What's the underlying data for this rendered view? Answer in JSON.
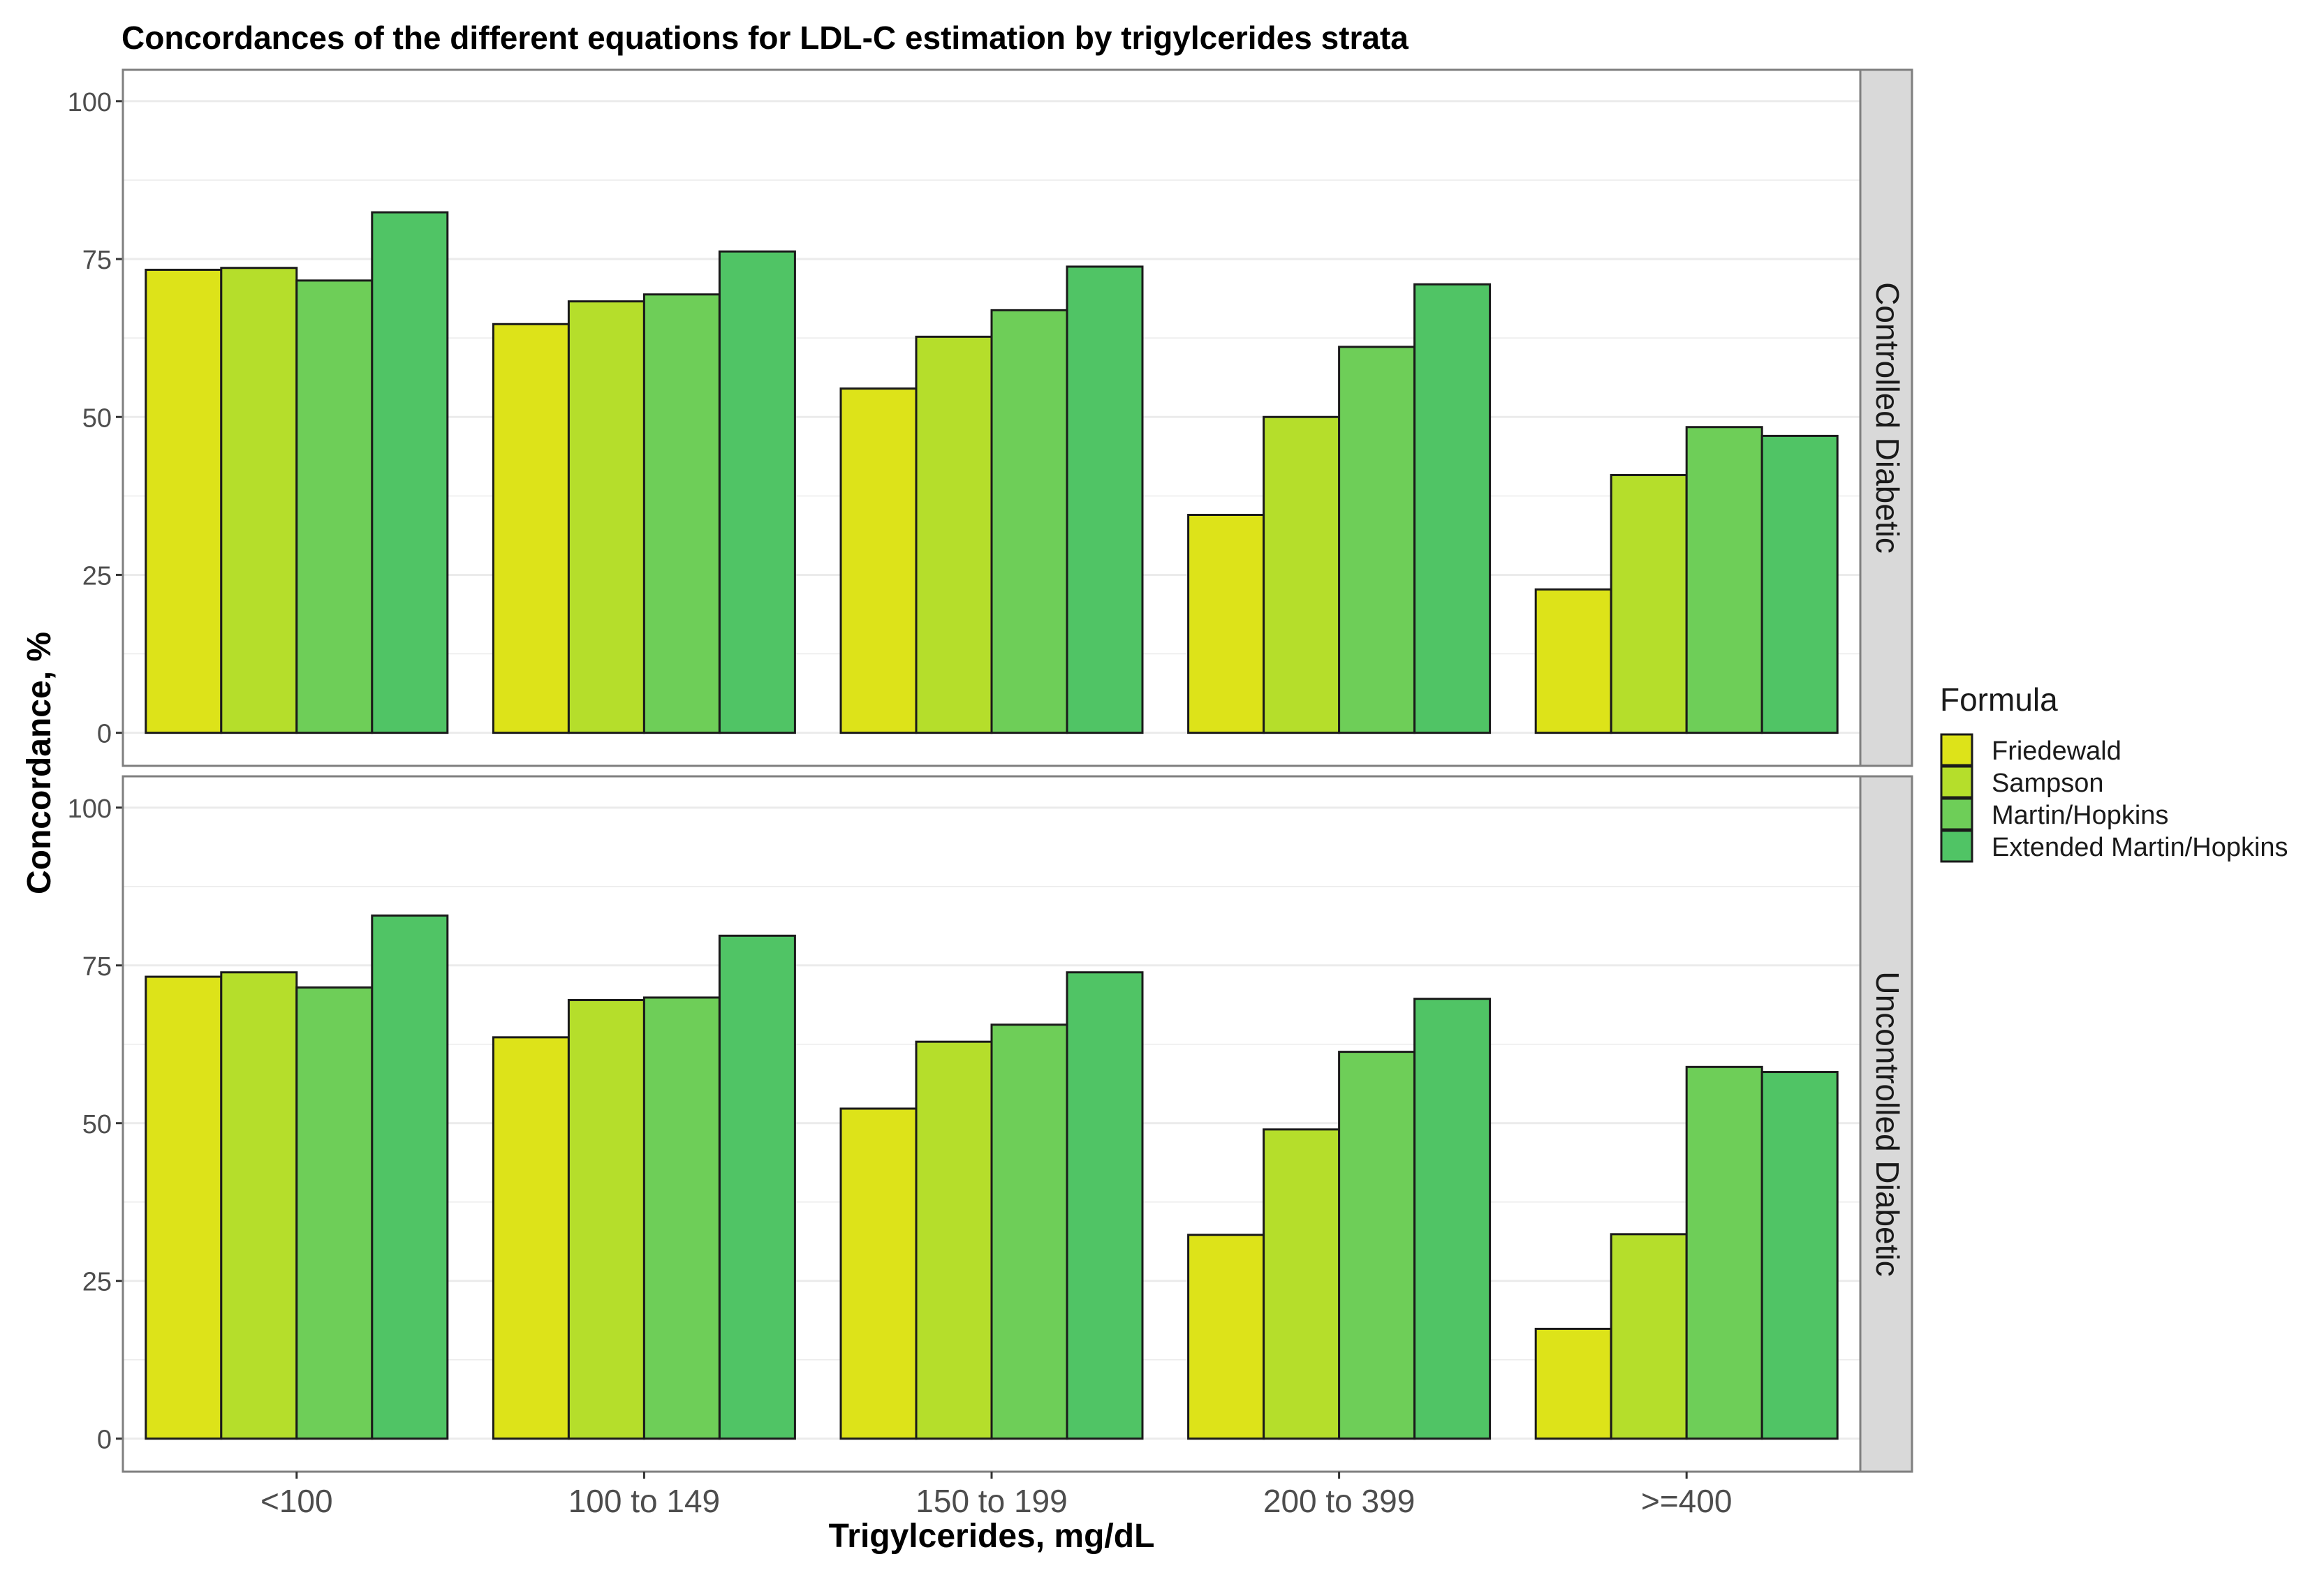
{
  "chart_data": {
    "type": "bar",
    "title": "Concordances of the different equations for LDL-C estimation by trigylcerides strata",
    "xlabel": "Trigylcerides, mg/dL",
    "ylabel": "Concordance, %",
    "ylim": [
      0,
      100
    ],
    "yticks": [
      "0",
      "25",
      "50",
      "75",
      "100"
    ],
    "categories": [
      "<100",
      "100 to 149",
      "150 to 199",
      "200 to 399",
      ">=400"
    ],
    "legend": {
      "title": "Formula",
      "position": "right",
      "entries": [
        "Friedewald",
        "Sampson",
        "Martin/Hopkins",
        "Extended Martin/Hopkins"
      ]
    },
    "colors": {
      "Friedewald": "#dde319",
      "Sampson": "#b5de2b",
      "Martin/Hopkins": "#6ece58",
      "Extended Martin/Hopkins": "#50c465",
      "strip_bg": "#d9d9d9",
      "grid": "#ebebeb",
      "panel_border": "#7f7f7f"
    },
    "panels": [
      {
        "label": "Controlled Diabetic",
        "series": [
          {
            "name": "Friedewald",
            "values": [
              73.3,
              64.7,
              54.5,
              34.5,
              22.7
            ]
          },
          {
            "name": "Sampson",
            "values": [
              73.6,
              68.3,
              62.7,
              50.0,
              40.8
            ]
          },
          {
            "name": "Martin/Hopkins",
            "values": [
              71.6,
              69.4,
              66.9,
              61.1,
              48.4
            ]
          },
          {
            "name": "Extended Martin/Hopkins",
            "values": [
              82.4,
              76.2,
              73.8,
              71.0,
              47.0
            ]
          }
        ]
      },
      {
        "label": "Uncontrolled Diabetic",
        "series": [
          {
            "name": "Friedewald",
            "values": [
              73.2,
              63.6,
              52.3,
              32.3,
              17.4
            ]
          },
          {
            "name": "Sampson",
            "values": [
              73.9,
              69.5,
              62.9,
              49.0,
              32.4
            ]
          },
          {
            "name": "Martin/Hopkins",
            "values": [
              71.5,
              69.9,
              65.6,
              61.3,
              58.9
            ]
          },
          {
            "name": "Extended Martin/Hopkins",
            "values": [
              82.9,
              79.7,
              73.9,
              69.7,
              58.1
            ]
          }
        ]
      }
    ]
  }
}
